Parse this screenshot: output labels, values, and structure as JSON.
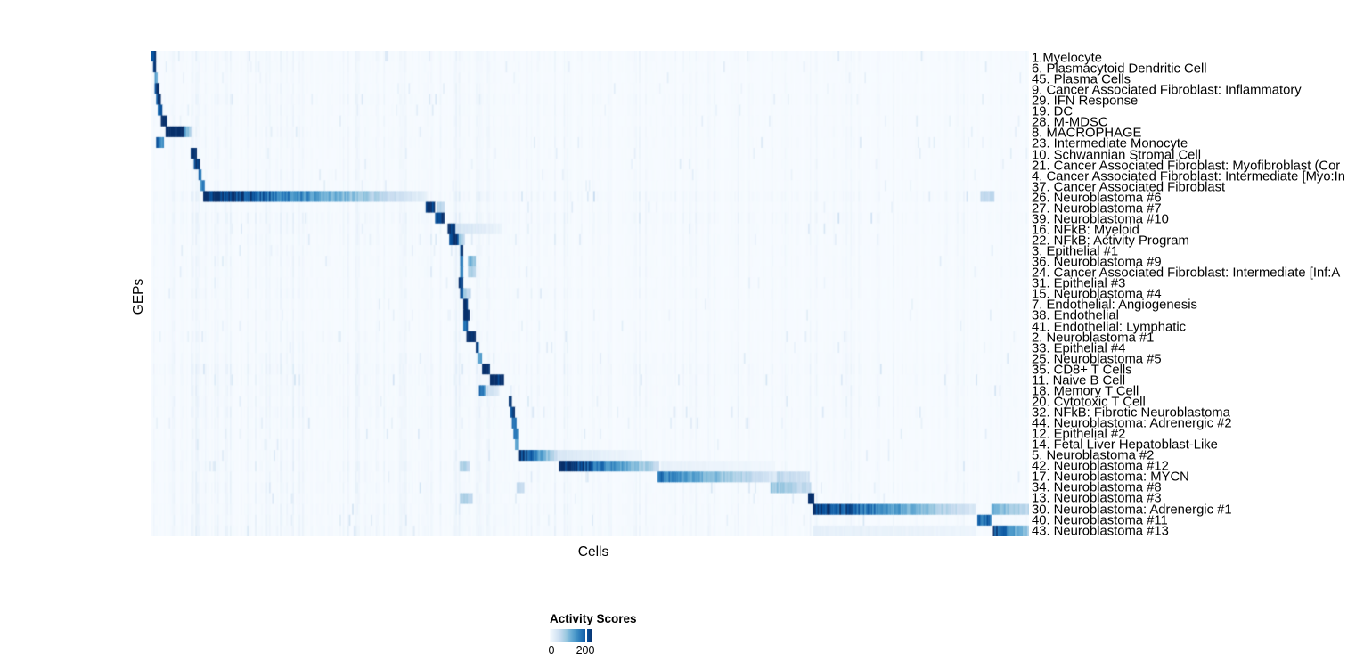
{
  "chart_data": {
    "type": "heatmap",
    "title": "",
    "xlabel": "Cells",
    "ylabel": "GEPs",
    "colorbar_title": "Activity Scores",
    "colorbar_tick_labels": [
      "0",
      "200"
    ],
    "colorbar_ticks": [
      0,
      200
    ],
    "colorbar_tick_fraction": 0.854,
    "colormap": "Blues",
    "colormap_stops": [
      "#f7fbff",
      "#deebf7",
      "#c6dbef",
      "#9ecae1",
      "#6baed6",
      "#4292c6",
      "#2171b5",
      "#08519c",
      "#08306b"
    ],
    "value_range": [
      0,
      234
    ],
    "grid": false,
    "description": "Activity scores of 45 gene expression programs (GEPs, rows) across cells (columns) ordered by cluster; high-activity blocks lie along the diagonal. Blocks are given as [xStartFrac, xEndFrac, startScore, endScore].",
    "rows": [
      {
        "label": "1.Myelocyte",
        "texture": 0.5,
        "blocks": [
          [
            0.0,
            0.005,
            230,
            230
          ]
        ]
      },
      {
        "label": "6. Plasmacytoid Dendritic Cell",
        "texture": 0.4,
        "blocks": [
          [
            0.001,
            0.006,
            215,
            215
          ]
        ]
      },
      {
        "label": "45. Plasma Cells",
        "texture": 0.35,
        "blocks": [
          [
            0.003,
            0.007,
            120,
            120
          ]
        ]
      },
      {
        "label": "9. Cancer Associated Fibroblast: Inflammatory",
        "texture": 0.35,
        "blocks": [
          [
            0.004,
            0.009,
            235,
            235
          ]
        ]
      },
      {
        "label": "29. IFN Response",
        "texture": 0.5,
        "blocks": [
          [
            0.005,
            0.011,
            225,
            225
          ]
        ]
      },
      {
        "label": "19. DC",
        "texture": 0.4,
        "blocks": [
          [
            0.008,
            0.013,
            210,
            210
          ]
        ]
      },
      {
        "label": "28. M-MDSC",
        "texture": 0.4,
        "blocks": [
          [
            0.01,
            0.017,
            245,
            245
          ]
        ]
      },
      {
        "label": "8. MACROPHAGE",
        "texture": 0.45,
        "blocks": [
          [
            0.016,
            0.037,
            252,
            252
          ],
          [
            0.037,
            0.047,
            130,
            60
          ]
        ]
      },
      {
        "label": "23. Intermediate Monocyte",
        "texture": 0.45,
        "blocks": [
          [
            0.006,
            0.014,
            195,
            150
          ]
        ]
      },
      {
        "label": "10. Schwannian Stromal Cell",
        "texture": 0.4,
        "blocks": [
          [
            0.044,
            0.051,
            245,
            245
          ]
        ]
      },
      {
        "label": "21. Cancer Associated Fibroblast: Myofibroblast (Cor",
        "texture": 0.4,
        "blocks": [
          [
            0.049,
            0.055,
            225,
            225
          ]
        ]
      },
      {
        "label": "4. Cancer Associated Fibroblast: Intermediate [Myo:In",
        "texture": 0.4,
        "blocks": [
          [
            0.053,
            0.058,
            190,
            190
          ]
        ]
      },
      {
        "label": "37. Cancer Associated Fibroblast",
        "texture": 0.4,
        "blocks": [
          [
            0.056,
            0.06,
            150,
            150
          ]
        ]
      },
      {
        "label": "26. Neuroblastoma #6",
        "texture": 0.8,
        "blocks": [
          [
            0.059,
            0.315,
            252,
            18
          ],
          [
            0.944,
            0.96,
            60,
            60
          ]
        ]
      },
      {
        "label": "27. Neuroblastoma #7",
        "texture": 0.45,
        "blocks": [
          [
            0.312,
            0.324,
            245,
            245
          ],
          [
            0.325,
            0.334,
            70,
            55
          ]
        ]
      },
      {
        "label": "39. Neuroblastoma #10",
        "texture": 0.7,
        "blocks": [
          [
            0.324,
            0.334,
            235,
            235
          ]
        ]
      },
      {
        "label": "16. NFkB: Myeloid",
        "texture": 0.55,
        "blocks": [
          [
            0.337,
            0.346,
            235,
            235
          ],
          [
            0.347,
            0.4,
            45,
            12
          ]
        ]
      },
      {
        "label": "22. NFkB: Activity Program",
        "texture": 0.5,
        "blocks": [
          [
            0.34,
            0.35,
            228,
            228
          ],
          [
            0.35,
            0.357,
            110,
            60
          ]
        ]
      },
      {
        "label": "3. Epithelial #1",
        "texture": 0.45,
        "blocks": [
          [
            0.3515,
            0.3555,
            235,
            235
          ]
        ]
      },
      {
        "label": "36. Neuroblastoma #9",
        "texture": 0.45,
        "blocks": [
          [
            0.352,
            0.356,
            180,
            180
          ],
          [
            0.36,
            0.369,
            125,
            90
          ]
        ]
      },
      {
        "label": "24. Cancer Associated Fibroblast: Intermediate [Inf:A",
        "texture": 0.45,
        "blocks": [
          [
            0.352,
            0.356,
            150,
            150
          ],
          [
            0.36,
            0.369,
            85,
            60
          ]
        ]
      },
      {
        "label": "31. Epithelial #3",
        "texture": 0.4,
        "blocks": [
          [
            0.35,
            0.355,
            228,
            228
          ]
        ]
      },
      {
        "label": "15. Neuroblastoma #4",
        "texture": 0.45,
        "blocks": [
          [
            0.351,
            0.356,
            205,
            205
          ],
          [
            0.356,
            0.364,
            85,
            45
          ]
        ]
      },
      {
        "label": "7. Endothelial: Angiogenesis",
        "texture": 0.35,
        "blocks": [
          [
            0.355,
            0.361,
            240,
            240
          ]
        ]
      },
      {
        "label": "38. Endothelial",
        "texture": 0.35,
        "blocks": [
          [
            0.355,
            0.362,
            250,
            250
          ]
        ]
      },
      {
        "label": "41. Endothelial: Lymphatic",
        "texture": 0.35,
        "blocks": [
          [
            0.355,
            0.36,
            205,
            205
          ]
        ]
      },
      {
        "label": "2. Neuroblastoma #1",
        "texture": 0.45,
        "blocks": [
          [
            0.359,
            0.37,
            252,
            252
          ]
        ]
      },
      {
        "label": "33. Epithelial #4",
        "texture": 0.4,
        "blocks": [
          [
            0.37,
            0.374,
            205,
            205
          ]
        ]
      },
      {
        "label": "25. Neuroblastoma #5",
        "texture": 0.55,
        "blocks": [
          [
            0.372,
            0.377,
            135,
            135
          ]
        ]
      },
      {
        "label": "35. CD8+ T Cells",
        "texture": 0.7,
        "blocks": [
          [
            0.376,
            0.385,
            252,
            252
          ]
        ]
      },
      {
        "label": "11. Naive B Cell",
        "texture": 0.6,
        "blocks": [
          [
            0.385,
            0.402,
            252,
            252
          ]
        ]
      },
      {
        "label": "18. Memory T Cell",
        "texture": 0.6,
        "blocks": [
          [
            0.374,
            0.381,
            185,
            150
          ],
          [
            0.381,
            0.396,
            60,
            25
          ]
        ]
      },
      {
        "label": "20. Cytotoxic T Cell",
        "texture": 0.55,
        "blocks": [
          [
            0.407,
            0.4115,
            228,
            228
          ]
        ]
      },
      {
        "label": "32. NFkB: Fibrotic Neuroblastoma",
        "texture": 0.6,
        "blocks": [
          [
            0.409,
            0.4135,
            205,
            205
          ]
        ]
      },
      {
        "label": "44. Neuroblastoma: Adrenergic #2",
        "texture": 0.5,
        "blocks": [
          [
            0.411,
            0.4155,
            185,
            185
          ]
        ]
      },
      {
        "label": "12. Epithelial #2",
        "texture": 0.45,
        "blocks": [
          [
            0.413,
            0.4175,
            165,
            165
          ]
        ]
      },
      {
        "label": "14. Fetal Liver Hepatoblast-Like",
        "texture": 0.45,
        "blocks": [
          [
            0.4145,
            0.4185,
            145,
            145
          ]
        ]
      },
      {
        "label": "5. Neuroblastoma #2",
        "texture": 0.5,
        "blocks": [
          [
            0.417,
            0.462,
            248,
            50
          ],
          [
            0.462,
            0.558,
            35,
            8
          ]
        ]
      },
      {
        "label": "42. Neuroblastoma #12",
        "texture": 0.6,
        "blocks": [
          [
            0.464,
            0.578,
            252,
            55
          ],
          [
            0.58,
            0.71,
            18,
            8
          ],
          [
            0.352,
            0.362,
            85,
            60
          ]
        ]
      },
      {
        "label": "17. Neuroblastoma: MYCN",
        "texture": 0.55,
        "blocks": [
          [
            0.577,
            0.712,
            170,
            32
          ],
          [
            0.712,
            0.75,
            65,
            40
          ]
        ]
      },
      {
        "label": "34. Neuroblastoma #8",
        "texture": 0.6,
        "blocks": [
          [
            0.706,
            0.751,
            95,
            55
          ],
          [
            0.416,
            0.425,
            70,
            50
          ]
        ]
      },
      {
        "label": "13. Neuroblastoma #3",
        "texture": 0.5,
        "blocks": [
          [
            0.749,
            0.7545,
            242,
            242
          ],
          [
            0.352,
            0.366,
            85,
            55
          ]
        ]
      },
      {
        "label": "30. Neuroblastoma: Adrenergic #1",
        "texture": 0.6,
        "blocks": [
          [
            0.7535,
            0.94,
            238,
            32
          ],
          [
            0.957,
            1.0,
            115,
            62
          ]
        ]
      },
      {
        "label": "40. Neuroblastoma #11",
        "texture": 0.6,
        "blocks": [
          [
            0.941,
            0.9575,
            178,
            178
          ]
        ]
      },
      {
        "label": "43. Neuroblastoma #13",
        "texture": 0.7,
        "blocks": [
          [
            0.959,
            1.0,
            212,
            78
          ],
          [
            0.754,
            0.94,
            20,
            12
          ]
        ]
      }
    ]
  },
  "layout_values": {
    "n_rows": 45
  }
}
